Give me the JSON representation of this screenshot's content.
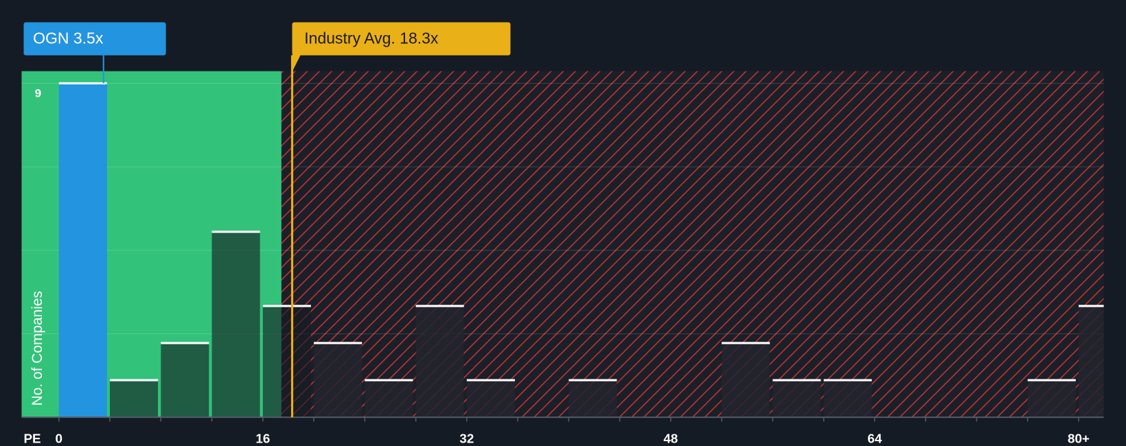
{
  "chart_data": {
    "type": "histogram",
    "xlabel": "PE",
    "ylabel": "No. of Companies",
    "bins": [
      0,
      4,
      8,
      12,
      16,
      20,
      24,
      28,
      32,
      36,
      40,
      44,
      48,
      52,
      56,
      60,
      64,
      68,
      72,
      76,
      80,
      84
    ],
    "counts": [
      9,
      1,
      2,
      5,
      3,
      2,
      1,
      3,
      1,
      0,
      1,
      0,
      0,
      2,
      1,
      1,
      0,
      0,
      0,
      1,
      3
    ],
    "xlim": [
      -2.93,
      81.97
    ],
    "ylim": [
      0,
      9.33
    ],
    "xticks": [
      0,
      16,
      32,
      48,
      64,
      {
        "value": 80,
        "label": "80+"
      }
    ],
    "yticks": [
      9
    ],
    "ygrid": [
      2.25,
      4.5,
      6.75,
      9
    ],
    "good_value_max": 17.46,
    "company": {
      "label": "OGN 3.5x",
      "value": 3.5,
      "color": "#2394e0"
    },
    "industry": {
      "label": "Industry Avg. 18.3x",
      "value": 18.3,
      "color": "#e9b018"
    },
    "good_color": "#33c27a",
    "bad_color": "#d2373a"
  }
}
